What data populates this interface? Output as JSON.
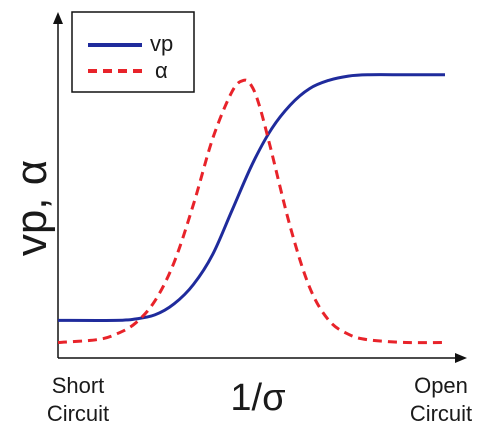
{
  "chart_data": {
    "type": "line",
    "ylabel_main": "vp, ",
    "ylabel_alpha": "α",
    "xlabel": "1/σ",
    "x_min_label": [
      "Short",
      "Circuit"
    ],
    "x_max_label": [
      "Open",
      "Circuit"
    ],
    "x_range": [
      0,
      1
    ],
    "y_range": [
      0,
      1
    ],
    "grid": false,
    "legend_position": "top-left",
    "series": [
      {
        "name": "vp",
        "color": "#1f2b9c",
        "style": "solid",
        "x": [
          0.0,
          0.15,
          0.2,
          0.25,
          0.3,
          0.35,
          0.4,
          0.45,
          0.5,
          0.55,
          0.6,
          0.65,
          0.7,
          0.75,
          0.8,
          0.9,
          1.0
        ],
        "y": [
          0.1,
          0.1,
          0.105,
          0.12,
          0.16,
          0.23,
          0.34,
          0.5,
          0.66,
          0.79,
          0.88,
          0.94,
          0.97,
          0.985,
          0.99,
          0.99,
          0.99
        ]
      },
      {
        "name": "α",
        "color": "#e8232a",
        "style": "dashed",
        "x": [
          0.0,
          0.1,
          0.15,
          0.2,
          0.25,
          0.3,
          0.35,
          0.4,
          0.45,
          0.48,
          0.5,
          0.52,
          0.55,
          0.6,
          0.65,
          0.7,
          0.75,
          0.8,
          0.9,
          1.0
        ],
        "y": [
          0.02,
          0.03,
          0.05,
          0.09,
          0.17,
          0.31,
          0.52,
          0.76,
          0.93,
          0.97,
          0.95,
          0.88,
          0.72,
          0.44,
          0.22,
          0.1,
          0.05,
          0.03,
          0.02,
          0.02
        ]
      }
    ]
  }
}
